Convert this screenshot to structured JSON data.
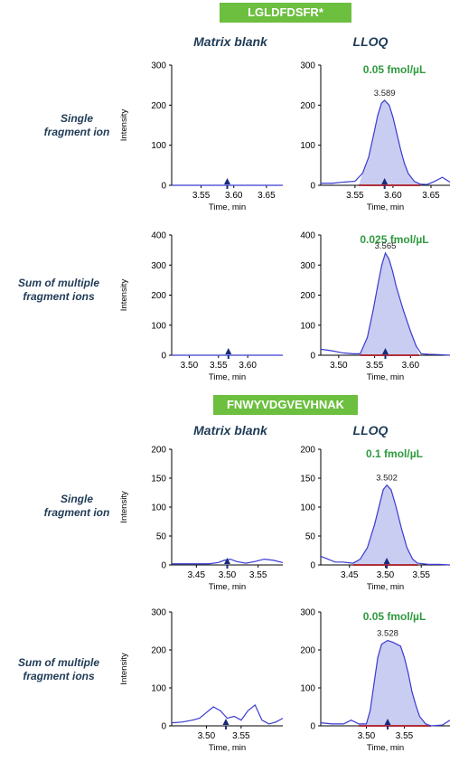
{
  "peptide1": {
    "banner": "LGLDFDSFR*",
    "col_blank": "Matrix blank",
    "col_lloq": "LLOQ",
    "row1": [
      "Single",
      "fragment ion"
    ],
    "row2": [
      "Sum of multiple",
      "fragment ions"
    ]
  },
  "peptide2": {
    "banner": "FNWYVDGVEVHNAK",
    "col_blank": "Matrix blank",
    "col_lloq": "LLOQ",
    "row1": [
      "Single",
      "fragment ion"
    ],
    "row2": [
      "Sum of multiple",
      "fragment ions"
    ]
  },
  "colors": {
    "trace": "#3a3ad0",
    "fill": "#c9cdf2",
    "baseline": "#b0303a",
    "marker": "#1a2a7a",
    "conc": "#2e9a3e",
    "banner": "#6cbf3f"
  },
  "chart_data": [
    {
      "id": "p1_blank_single",
      "type": "line",
      "xlabel": "Time, min",
      "ylabel": "Intensity",
      "xlim": [
        3.505,
        3.675
      ],
      "ylim": [
        0,
        300
      ],
      "yticks": [
        0,
        100,
        200,
        300
      ],
      "xticks": [
        3.55,
        3.6,
        3.65
      ],
      "xticklabels": [
        "3.55",
        "3.60",
        "3.65"
      ],
      "series": [
        {
          "x": [
            3.505,
            3.675
          ],
          "y": [
            0,
            0
          ]
        }
      ],
      "marker_x": 3.59
    },
    {
      "id": "p1_lloq_single",
      "type": "area",
      "xlabel": "Time, min",
      "ylabel": "Intensity",
      "xlim": [
        3.505,
        3.675
      ],
      "ylim": [
        0,
        300
      ],
      "yticks": [
        0,
        100,
        200,
        300
      ],
      "xticks": [
        3.55,
        3.6,
        3.65
      ],
      "xticklabels": [
        "3.55",
        "3.60",
        "3.65"
      ],
      "concentration": "0.05 fmol/µL",
      "peak_label": "3.589",
      "peak_x": 3.589,
      "peak_y": 212,
      "marker_x": 3.589,
      "baseline": [
        3.555,
        3.636
      ],
      "series": [
        {
          "x": [
            3.505,
            3.52,
            3.535,
            3.55,
            3.56,
            3.568,
            3.575,
            3.58,
            3.585,
            3.589,
            3.595,
            3.6,
            3.605,
            3.61,
            3.615,
            3.62,
            3.628,
            3.636,
            3.645,
            3.655,
            3.665,
            3.675
          ],
          "y": [
            5,
            5,
            8,
            10,
            30,
            70,
            130,
            175,
            205,
            212,
            200,
            170,
            130,
            90,
            55,
            30,
            10,
            3,
            2,
            10,
            20,
            8
          ]
        }
      ]
    },
    {
      "id": "p1_blank_sum",
      "type": "line",
      "xlabel": "Time, min",
      "ylabel": "Intensity",
      "xlim": [
        3.47,
        3.66
      ],
      "ylim": [
        0,
        400
      ],
      "yticks": [
        0,
        100,
        200,
        300,
        400
      ],
      "xticks": [
        3.5,
        3.55,
        3.6
      ],
      "xticklabels": [
        "3.50",
        "3.55",
        "3.60"
      ],
      "series": [
        {
          "x": [
            3.47,
            3.66
          ],
          "y": [
            0,
            0
          ]
        }
      ],
      "marker_x": 3.567
    },
    {
      "id": "p1_lloq_sum",
      "type": "area",
      "xlabel": "Time, min",
      "ylabel": "Intensity",
      "xlim": [
        3.475,
        3.655
      ],
      "ylim": [
        0,
        400
      ],
      "yticks": [
        0,
        100,
        200,
        300,
        400
      ],
      "xticks": [
        3.5,
        3.55,
        3.6
      ],
      "xticklabels": [
        "3.50",
        "3.55",
        "3.60"
      ],
      "concentration": "0.025 fmol/µL",
      "peak_label": "3.565",
      "peak_x": 3.565,
      "peak_y": 340,
      "marker_x": 3.565,
      "baseline": [
        3.53,
        3.612
      ],
      "series": [
        {
          "x": [
            3.475,
            3.49,
            3.505,
            3.52,
            3.53,
            3.54,
            3.548,
            3.555,
            3.56,
            3.565,
            3.57,
            3.575,
            3.58,
            3.59,
            3.6,
            3.608,
            3.615,
            3.625,
            3.64,
            3.655
          ],
          "y": [
            20,
            15,
            8,
            5,
            5,
            60,
            150,
            240,
            300,
            340,
            320,
            280,
            230,
            150,
            80,
            30,
            5,
            3,
            2,
            0
          ]
        }
      ]
    },
    {
      "id": "p2_blank_single",
      "type": "line",
      "xlabel": "Time, min",
      "ylabel": "Intensity",
      "xlim": [
        3.41,
        3.59
      ],
      "ylim": [
        0,
        200
      ],
      "yticks": [
        0,
        50,
        100,
        150,
        200
      ],
      "xticks": [
        3.45,
        3.5,
        3.55
      ],
      "xticklabels": [
        "3.45",
        "3.50",
        "3.55"
      ],
      "series": [
        {
          "x": [
            3.41,
            3.44,
            3.47,
            3.485,
            3.495,
            3.505,
            3.515,
            3.53,
            3.545,
            3.56,
            3.575,
            3.59
          ],
          "y": [
            2,
            2,
            2,
            4,
            8,
            10,
            6,
            3,
            6,
            10,
            8,
            4
          ]
        }
      ],
      "marker_x": 3.5
    },
    {
      "id": "p2_lloq_single",
      "type": "area",
      "xlabel": "Time, min",
      "ylabel": "Intensity",
      "xlim": [
        3.41,
        3.59
      ],
      "ylim": [
        0,
        200
      ],
      "yticks": [
        0,
        50,
        100,
        150,
        200
      ],
      "xticks": [
        3.45,
        3.5,
        3.55
      ],
      "xticklabels": [
        "3.45",
        "3.50",
        "3.55"
      ],
      "concentration": "0.1 fmol/µL",
      "peak_label": "3.502",
      "peak_x": 3.502,
      "peak_y": 138,
      "marker_x": 3.502,
      "baseline": [
        3.455,
        3.545
      ],
      "series": [
        {
          "x": [
            3.41,
            3.42,
            3.43,
            3.44,
            3.455,
            3.465,
            3.475,
            3.485,
            3.492,
            3.497,
            3.502,
            3.508,
            3.515,
            3.522,
            3.53,
            3.538,
            3.545,
            3.56,
            3.575,
            3.59
          ],
          "y": [
            15,
            10,
            5,
            5,
            3,
            10,
            30,
            70,
            105,
            130,
            138,
            130,
            100,
            65,
            30,
            10,
            3,
            1,
            1,
            0
          ]
        }
      ]
    },
    {
      "id": "p2_blank_sum",
      "type": "line",
      "xlabel": "Time, min",
      "ylabel": "Intensity",
      "xlim": [
        3.45,
        3.61
      ],
      "ylim": [
        0,
        300
      ],
      "yticks": [
        0,
        100,
        200,
        300
      ],
      "xticks": [
        3.5,
        3.55
      ],
      "xticklabels": [
        "3.50",
        "3.55"
      ],
      "series": [
        {
          "x": [
            3.45,
            3.465,
            3.48,
            3.49,
            3.5,
            3.51,
            3.52,
            3.53,
            3.54,
            3.55,
            3.56,
            3.57,
            3.58,
            3.59,
            3.6,
            3.61
          ],
          "y": [
            8,
            10,
            15,
            20,
            35,
            50,
            40,
            20,
            25,
            15,
            40,
            55,
            15,
            5,
            10,
            20
          ]
        }
      ],
      "marker_x": 3.528
    },
    {
      "id": "p2_lloq_sum",
      "type": "area",
      "xlabel": "Time, min",
      "ylabel": "Intensity",
      "xlim": [
        3.44,
        3.61
      ],
      "ylim": [
        0,
        300
      ],
      "yticks": [
        0,
        100,
        200,
        300
      ],
      "xticks": [
        3.5,
        3.55
      ],
      "xticklabels": [
        "3.50",
        "3.55"
      ],
      "concentration": "0.05 fmol/µL",
      "peak_label": "3.528",
      "peak_x": 3.528,
      "peak_y": 225,
      "marker_x": 3.528,
      "baseline": [
        3.49,
        3.585
      ],
      "series": [
        {
          "x": [
            3.44,
            3.455,
            3.47,
            3.48,
            3.49,
            3.5,
            3.505,
            3.51,
            3.515,
            3.52,
            3.528,
            3.535,
            3.54,
            3.545,
            3.55,
            3.555,
            3.56,
            3.565,
            3.57,
            3.578,
            3.585,
            3.6,
            3.61
          ],
          "y": [
            8,
            5,
            5,
            15,
            5,
            5,
            40,
            110,
            180,
            215,
            225,
            220,
            215,
            210,
            180,
            140,
            90,
            55,
            25,
            5,
            0,
            2,
            15
          ]
        }
      ]
    }
  ]
}
